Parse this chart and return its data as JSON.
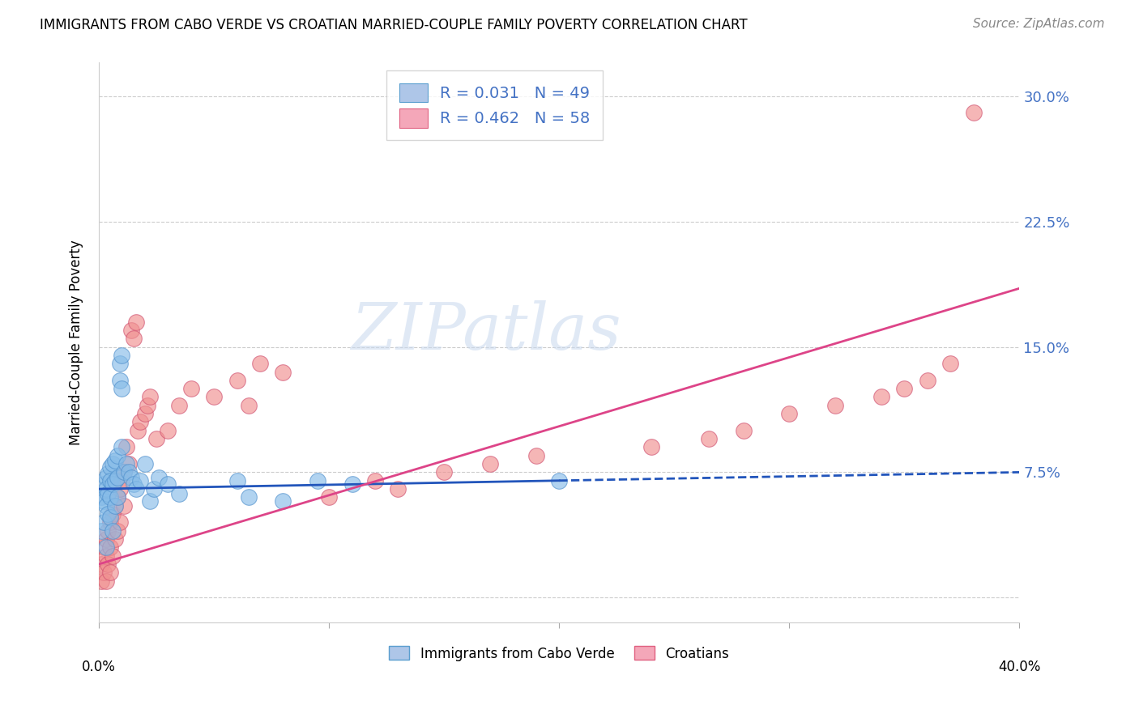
{
  "title": "IMMIGRANTS FROM CABO VERDE VS CROATIAN MARRIED-COUPLE FAMILY POVERTY CORRELATION CHART",
  "source": "Source: ZipAtlas.com",
  "ylabel": "Married-Couple Family Poverty",
  "yticks": [
    0.0,
    0.075,
    0.15,
    0.225,
    0.3
  ],
  "ytick_labels": [
    "",
    "7.5%",
    "15.0%",
    "22.5%",
    "30.0%"
  ],
  "xmin": 0.0,
  "xmax": 0.4,
  "ymin": -0.015,
  "ymax": 0.32,
  "watermark_text": "ZIPatlas",
  "legend_entries": [
    {
      "label": "R = 0.031   N = 49",
      "face": "#aec6e8",
      "edge": "#5a9ecf"
    },
    {
      "label": "R = 0.462   N = 58",
      "face": "#f4a7b9",
      "edge": "#e06080"
    }
  ],
  "bottom_legend": [
    "Immigrants from Cabo Verde",
    "Croatians"
  ],
  "series1_color": "#87bce8",
  "series2_color": "#f09090",
  "series1_edge": "#5090cc",
  "series2_edge": "#d05070",
  "trendline1_color": "#2255bb",
  "trendline2_color": "#dd4488",
  "cabo_verde_x": [
    0.001,
    0.001,
    0.002,
    0.002,
    0.002,
    0.003,
    0.003,
    0.003,
    0.003,
    0.004,
    0.004,
    0.004,
    0.005,
    0.005,
    0.005,
    0.005,
    0.006,
    0.006,
    0.006,
    0.007,
    0.007,
    0.007,
    0.008,
    0.008,
    0.008,
    0.009,
    0.009,
    0.01,
    0.01,
    0.01,
    0.011,
    0.012,
    0.013,
    0.014,
    0.015,
    0.016,
    0.018,
    0.02,
    0.022,
    0.024,
    0.026,
    0.03,
    0.035,
    0.06,
    0.065,
    0.08,
    0.095,
    0.11,
    0.2
  ],
  "cabo_verde_y": [
    0.06,
    0.04,
    0.068,
    0.058,
    0.045,
    0.072,
    0.065,
    0.055,
    0.03,
    0.074,
    0.062,
    0.05,
    0.078,
    0.07,
    0.06,
    0.048,
    0.08,
    0.068,
    0.04,
    0.082,
    0.07,
    0.055,
    0.085,
    0.072,
    0.06,
    0.14,
    0.13,
    0.145,
    0.125,
    0.09,
    0.075,
    0.08,
    0.075,
    0.072,
    0.068,
    0.065,
    0.07,
    0.08,
    0.058,
    0.065,
    0.072,
    0.068,
    0.062,
    0.07,
    0.06,
    0.058,
    0.07,
    0.068,
    0.07
  ],
  "croatian_x": [
    0.001,
    0.001,
    0.002,
    0.002,
    0.003,
    0.003,
    0.003,
    0.004,
    0.004,
    0.005,
    0.005,
    0.005,
    0.006,
    0.006,
    0.007,
    0.007,
    0.008,
    0.008,
    0.009,
    0.009,
    0.01,
    0.011,
    0.011,
    0.012,
    0.013,
    0.014,
    0.015,
    0.016,
    0.017,
    0.018,
    0.02,
    0.021,
    0.022,
    0.025,
    0.03,
    0.035,
    0.04,
    0.05,
    0.06,
    0.065,
    0.07,
    0.08,
    0.1,
    0.12,
    0.13,
    0.15,
    0.17,
    0.19,
    0.24,
    0.265,
    0.28,
    0.3,
    0.32,
    0.34,
    0.35,
    0.36,
    0.37,
    0.38
  ],
  "croatian_y": [
    0.02,
    0.01,
    0.03,
    0.015,
    0.035,
    0.025,
    0.01,
    0.04,
    0.02,
    0.045,
    0.03,
    0.015,
    0.05,
    0.025,
    0.055,
    0.035,
    0.06,
    0.04,
    0.065,
    0.045,
    0.07,
    0.075,
    0.055,
    0.09,
    0.08,
    0.16,
    0.155,
    0.165,
    0.1,
    0.105,
    0.11,
    0.115,
    0.12,
    0.095,
    0.1,
    0.115,
    0.125,
    0.12,
    0.13,
    0.115,
    0.14,
    0.135,
    0.06,
    0.07,
    0.065,
    0.075,
    0.08,
    0.085,
    0.09,
    0.095,
    0.1,
    0.11,
    0.115,
    0.12,
    0.125,
    0.13,
    0.14,
    0.29
  ],
  "trendline1_x0": 0.0,
  "trendline1_x1": 0.4,
  "trendline1_y0": 0.065,
  "trendline1_y1": 0.075,
  "trendline1_solid_x1": 0.2,
  "trendline2_x0": 0.0,
  "trendline2_x1": 0.4,
  "trendline2_y0": 0.02,
  "trendline2_y1": 0.185
}
